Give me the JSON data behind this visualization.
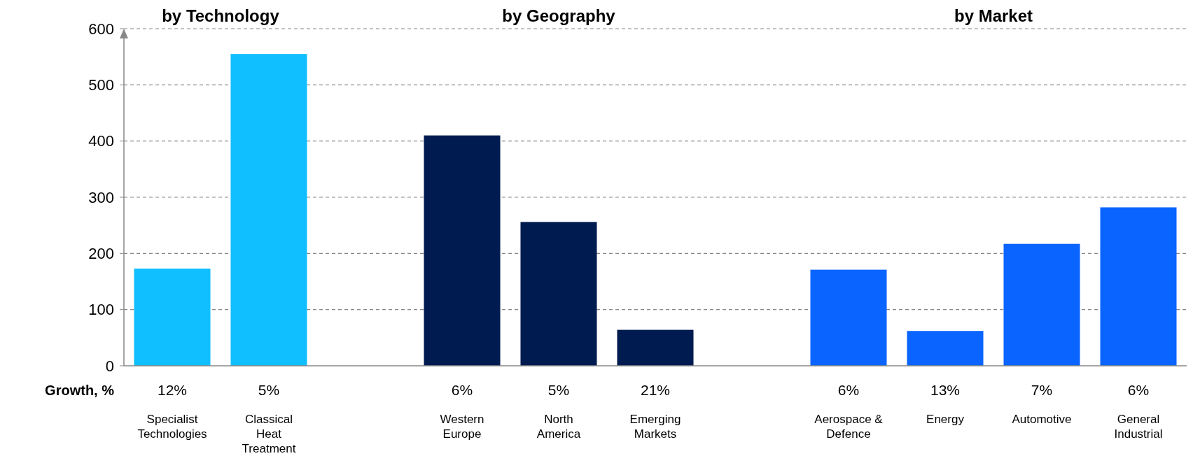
{
  "chart_data": {
    "type": "bar",
    "categories": [
      "Specialist Technologies",
      "Classical Heat Treatment",
      null,
      "Western Europe",
      "North America",
      "Emerging Markets",
      null,
      "Aerospace & Defence",
      "Energy",
      "Automotive",
      "General Industrial"
    ],
    "values": [
      173,
      555,
      null,
      410,
      256,
      64,
      null,
      171,
      62,
      217,
      282
    ],
    "colors": [
      "#10bfff",
      "#10bfff",
      null,
      "#001b50",
      "#001b50",
      "#001b50",
      null,
      "#0a64ff",
      "#0a64ff",
      "#0a64ff",
      "#0a64ff"
    ],
    "ylim": [
      0,
      600
    ],
    "yticks": [
      0,
      100,
      200,
      300,
      400,
      500,
      600
    ],
    "grid": "y",
    "annotations": [
      "by Technology",
      "by Geography",
      "by Market",
      "Growth, %",
      "12%",
      "5%",
      "6%",
      "5%",
      "21%",
      "6%",
      "13%",
      "7%",
      "6%"
    ]
  }
}
